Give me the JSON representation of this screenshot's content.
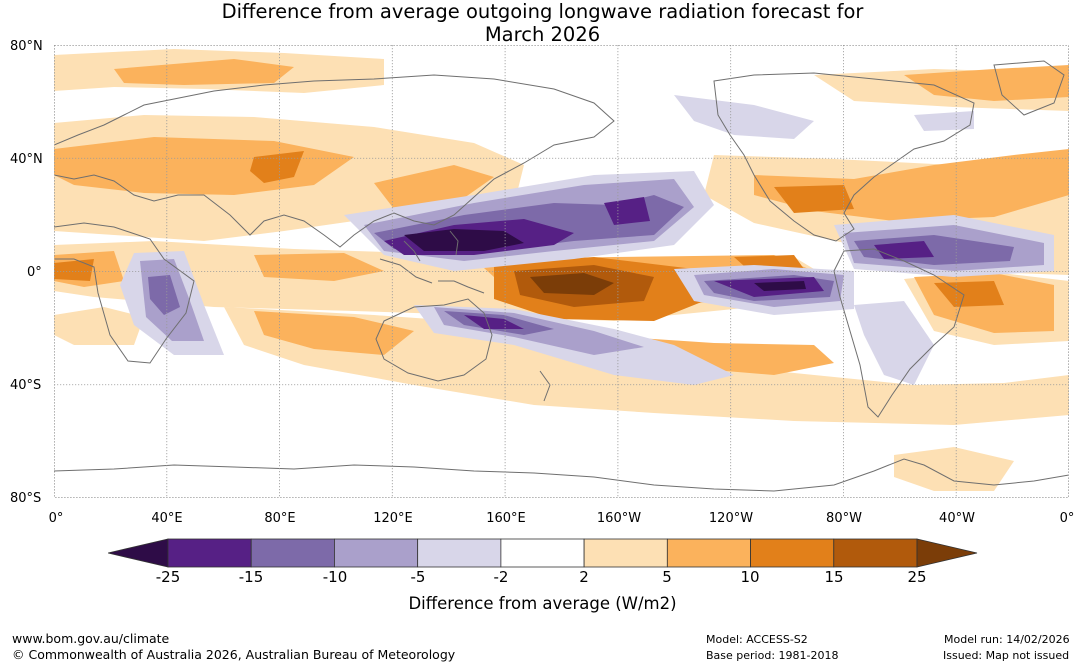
{
  "title": {
    "line1": "Difference from average outgoing longwave radiation forecast for",
    "line2": "March 2026"
  },
  "map": {
    "lat_labels": [
      "80°N",
      "40°N",
      "0°",
      "40°S",
      "80°S"
    ],
    "lon_labels": [
      "0°",
      "40°E",
      "80°E",
      "120°E",
      "160°E",
      "160°W",
      "120°W",
      "80°W",
      "40°W",
      "0°"
    ]
  },
  "colorbar": {
    "ticks": [
      "-25",
      "-15",
      "-10",
      "-5",
      "-2",
      "2",
      "5",
      "10",
      "15",
      "25"
    ],
    "colors": [
      "#2e0c47",
      "#562085",
      "#7d6aa9",
      "#aaa0cb",
      "#d8d6e9",
      "#ffffff",
      "#fde0b4",
      "#fbb25c",
      "#e2801a",
      "#b15a0c",
      "#7b3d08"
    ],
    "label": "Difference from average (W/m2)"
  },
  "footer": {
    "website": "www.bom.gov.au/climate",
    "copyright": "© Commonwealth of Australia 2026, Australian Bureau of Meteorology",
    "model": "Model: ACCESS-S2",
    "base_period": "Base period: 1981-2018",
    "model_run": "Model run: 14/02/2026",
    "issued": "Issued: Map not issued"
  }
}
